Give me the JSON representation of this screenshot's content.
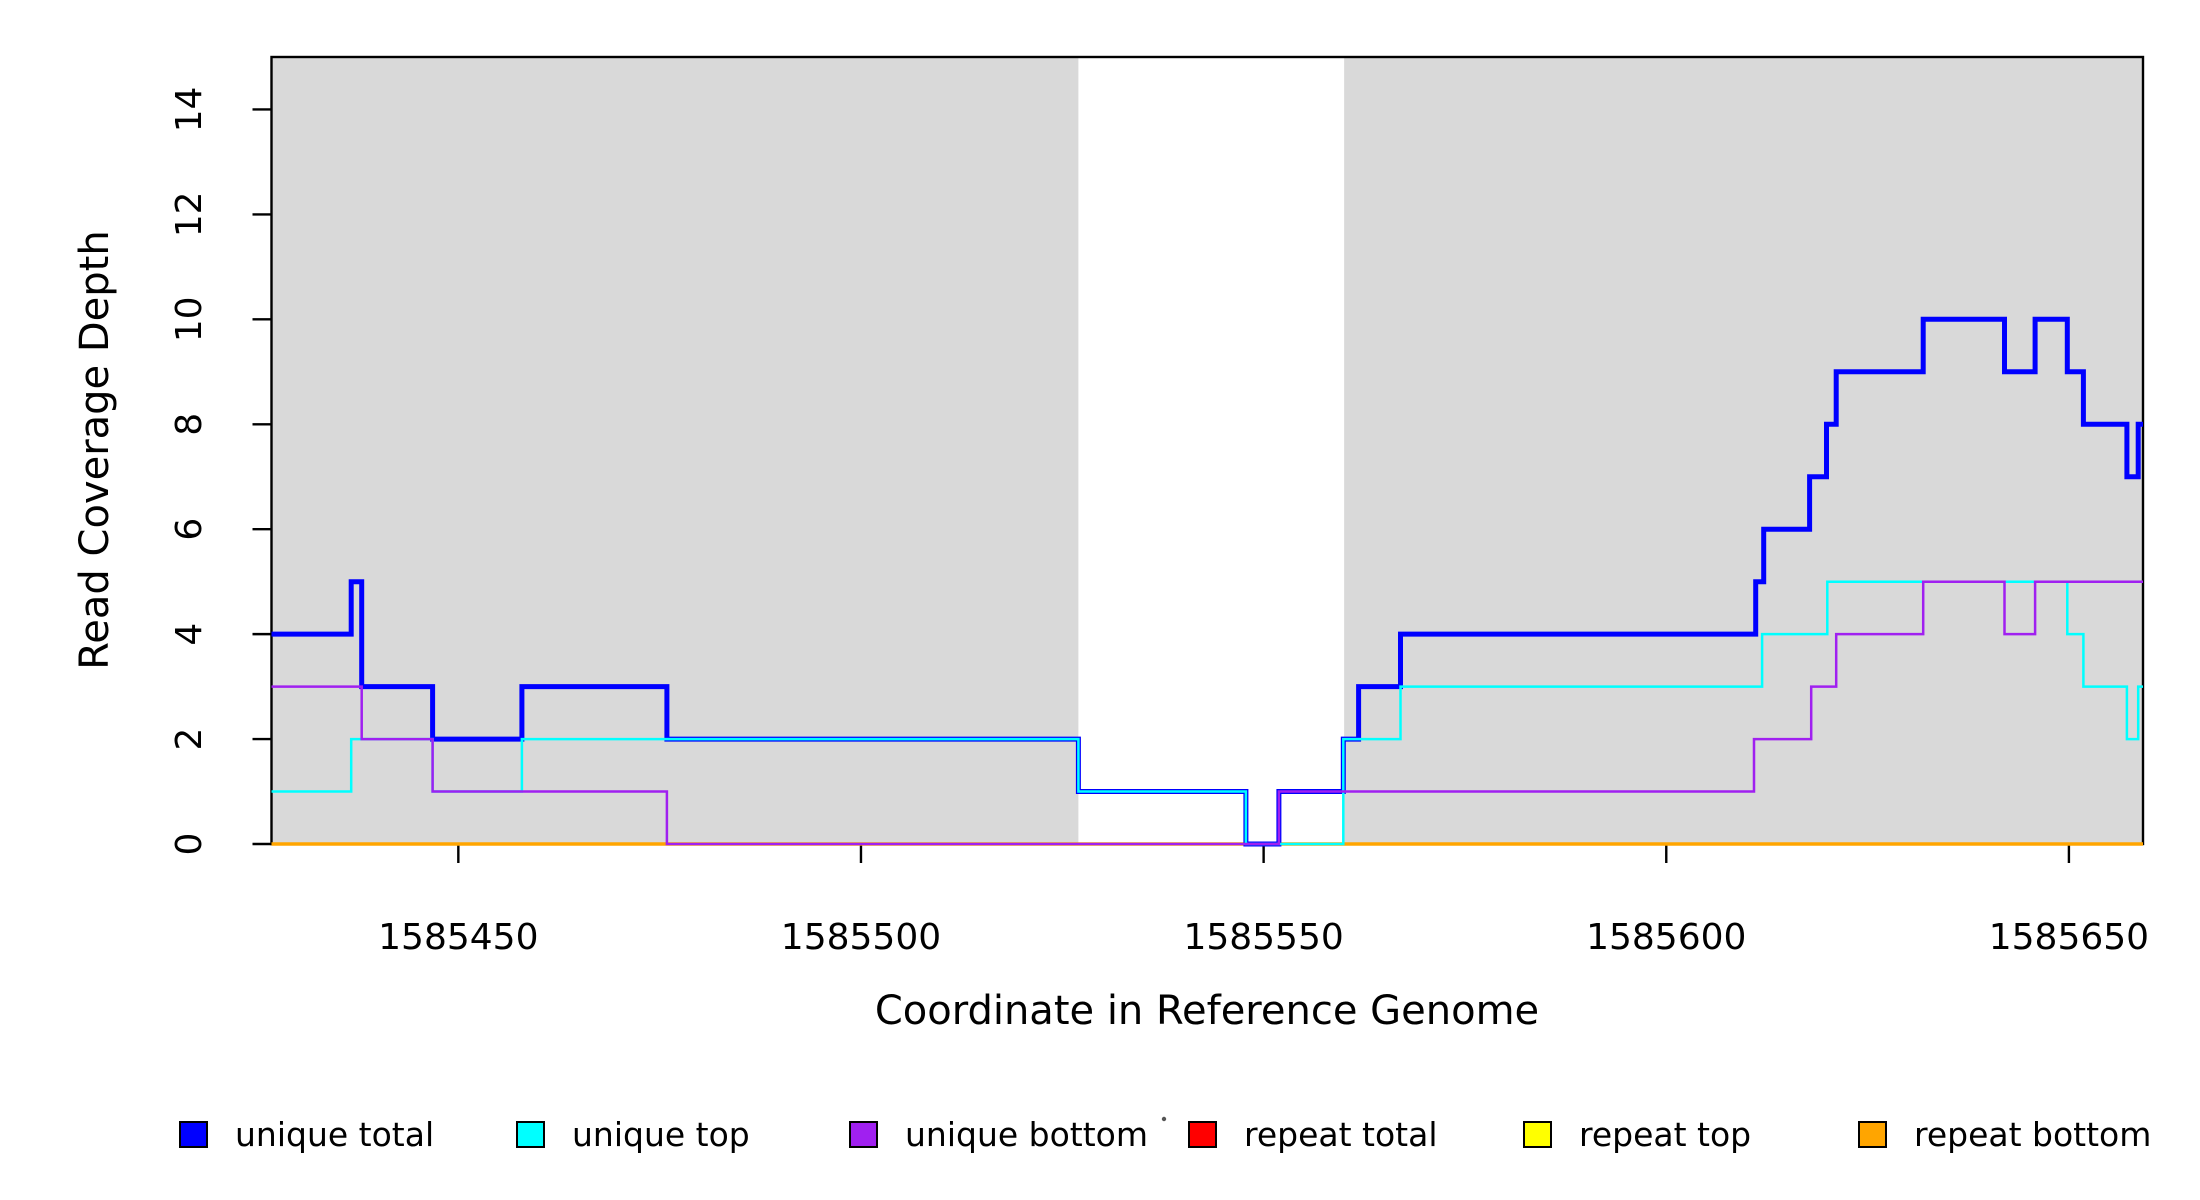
{
  "figure": {
    "background": "#FFFFFF"
  },
  "chart_data": {
    "type": "step-line",
    "title": "",
    "xlabel": "Coordinate in Reference Genome",
    "ylabel": "Read Coverage Depth",
    "xlim": [
      1585426.8,
      1585659.2
    ],
    "ylim": [
      0,
      15
    ],
    "x_ticks": [
      1585450,
      1585500,
      1585550,
      1585600,
      1585650
    ],
    "y_ticks": [
      0,
      2,
      4,
      6,
      8,
      10,
      12,
      14
    ],
    "grid": false,
    "legend_position": "bottom",
    "frame_color": "#000000",
    "shade_color": "#D9D9D9",
    "shaded_regions": [
      {
        "from": 1585426.8,
        "to": 1585527.0
      },
      {
        "from": 1585560.0,
        "to": 1585659.2
      }
    ],
    "series": [
      {
        "name": "unique total",
        "group": "unique",
        "color": "#0000FF",
        "line_width": 5,
        "start_value": 4,
        "steps": [
          [
            1585436.7,
            5
          ],
          [
            1585438.0,
            3
          ],
          [
            1585446.8,
            2
          ],
          [
            1585457.9,
            3
          ],
          [
            1585475.9,
            2
          ],
          [
            1585527.0,
            1
          ],
          [
            1585547.8,
            0
          ],
          [
            1585551.9,
            1
          ],
          [
            1585559.9,
            2
          ],
          [
            1585561.8,
            3
          ],
          [
            1585567.0,
            4
          ],
          [
            1585611.1,
            5
          ],
          [
            1585612.1,
            6
          ],
          [
            1585617.8,
            7
          ],
          [
            1585619.9,
            8
          ],
          [
            1585621.1,
            9
          ],
          [
            1585631.9,
            10
          ],
          [
            1585642.0,
            9
          ],
          [
            1585645.8,
            10
          ],
          [
            1585649.8,
            9
          ],
          [
            1585651.8,
            8
          ],
          [
            1585657.2,
            7
          ],
          [
            1585658.6,
            8
          ]
        ]
      },
      {
        "name": "unique top",
        "group": "unique",
        "color": "#00FFFF",
        "line_width": 2.5,
        "start_value": 1,
        "steps": [
          [
            1585436.7,
            2
          ],
          [
            1585446.8,
            1
          ],
          [
            1585457.9,
            2
          ],
          [
            1585527.0,
            1
          ],
          [
            1585547.8,
            0
          ],
          [
            1585559.9,
            2
          ],
          [
            1585567.0,
            3
          ],
          [
            1585611.9,
            4
          ],
          [
            1585620.0,
            5
          ],
          [
            1585649.8,
            4
          ],
          [
            1585651.8,
            3
          ],
          [
            1585657.2,
            2
          ],
          [
            1585658.6,
            3
          ]
        ]
      },
      {
        "name": "unique bottom",
        "group": "unique",
        "color": "#A020F0",
        "line_width": 2.5,
        "start_value": 3,
        "steps": [
          [
            1585438.0,
            2
          ],
          [
            1585446.8,
            1
          ],
          [
            1585475.9,
            0
          ],
          [
            1585551.9,
            1
          ],
          [
            1585610.9,
            2
          ],
          [
            1585618.0,
            3
          ],
          [
            1585621.1,
            4
          ],
          [
            1585631.9,
            5
          ],
          [
            1585642.0,
            4
          ],
          [
            1585645.8,
            5
          ]
        ]
      },
      {
        "name": "repeat total",
        "group": "repeat",
        "color": "#FF0000",
        "line_width": 2.5,
        "start_value": 0,
        "steps": []
      },
      {
        "name": "repeat top",
        "group": "repeat",
        "color": "#FFFF00",
        "line_width": 2.5,
        "start_value": 0,
        "steps": []
      },
      {
        "name": "repeat bottom",
        "group": "repeat",
        "color": "#FFA500",
        "line_width": 3.5,
        "start_value": 0,
        "steps": []
      }
    ],
    "legend": {
      "entries": [
        {
          "label": "unique total",
          "color": "#0000FF"
        },
        {
          "label": "unique top",
          "color": "#00FFFF"
        },
        {
          "label": "unique bottom",
          "color": "#A020F0"
        },
        {
          "label": "repeat total",
          "color": "#FF0000"
        },
        {
          "label": "repeat top",
          "color": "#FFFF00"
        },
        {
          "label": "repeat bottom",
          "color": "#FFA500"
        }
      ]
    }
  }
}
